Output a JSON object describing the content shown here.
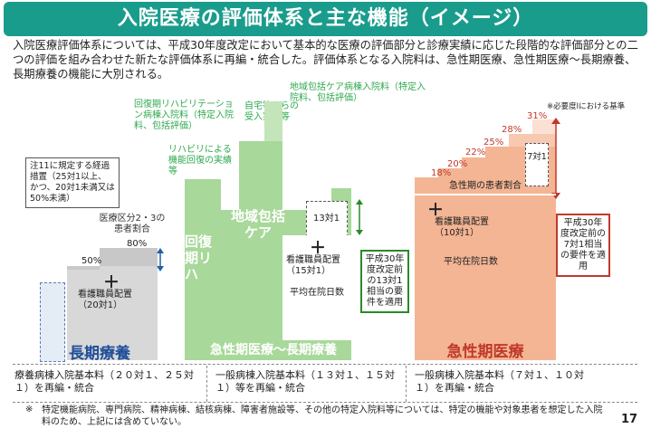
{
  "title": "入院医療の評価体系と主な機能（イメージ）",
  "intro": "入院医療評価体系については、平成30年度改定において基本的な医療の評価部分と診療実績に応じた段階的な評価部分との二つの評価を組み合わせた新たな評価体系に再編・統合した。評価体系となる入院料は、急性期医療、急性期医療～長期療養、長期療養の機能に大別される。",
  "longterm": {
    "note": "注11に規定する経過措置（25対1以上、かつ、20対1未満又は50%未満）",
    "ratio_label": "医療区分2・3の患者割合",
    "pct_50": "50%",
    "pct_80": "80%",
    "plus": "＋",
    "nurse": "看護職員配置（20対1）",
    "label": "長期療養"
  },
  "middle": {
    "rehab_ward": "回復期リハビリテーション病棟入院料（特定入院料、包括評価）",
    "rehab_function": "リハビリによる機能回復の実績等",
    "rehab_label": "回復期リハ",
    "comm_ward": "地域包括ケア病棟入院料（特定入院料、包括評価）",
    "home_support": "自宅等からの受入実績等",
    "comm_label": "地域包括ケア",
    "ratio_13": "13対1",
    "plus": "＋",
    "nurse": "看護職員配置（15対1）",
    "avg_stay": "平均在院日数",
    "req_box": "平成30年度改定前の13対1相当の要件を適用",
    "label": "急性期医療～長期療養"
  },
  "acute": {
    "note": "※必要度Ⅰにおける基準",
    "percentages": [
      "18%",
      "20%",
      "22%",
      "25%",
      "28%",
      "31%"
    ],
    "ratio_7": "7対1",
    "patient_ratio": "急性期の患者割合",
    "plus": "＋",
    "nurse": "看護職員配置（10対1）",
    "avg_stay": "平均在院日数",
    "req_box": "平成30年度改定前の7対1相当の要件を適用",
    "label": "急性期医療"
  },
  "footer": {
    "col1": "療養病棟入院基本料（２０対１、２５対１）を再編・統合",
    "col2": "一般病棟入院基本料（１３対１、１５対１）等を再編・統合",
    "col3": "一般病棟入院基本料（７対１、１０対１）を再編・統合",
    "note_mark": "※",
    "note": "特定機能病院、専門病院、精神病棟、結核病棟、障害者施設等、その他の特定入院料等については、特定の機能や対象患者を想定した入院料のため、上記には含めていない。",
    "page": "17"
  },
  "colors": {
    "teal": "#1a9c8c",
    "green_light": "#a8d89a",
    "green_text": "#2fa84f",
    "salmon": "#f4b594",
    "red": "#c0392b",
    "gray": "#c8c8c8"
  }
}
